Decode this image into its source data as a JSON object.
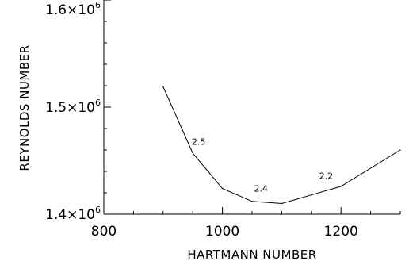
{
  "chart_data": {
    "type": "line",
    "title": "",
    "xlabel": "HARTMANN NUMBER",
    "ylabel": "REYNOLDS NUMBER",
    "xlim": [
      800,
      1300
    ],
    "ylim": [
      1400000,
      1600000
    ],
    "grid": false,
    "xticks": [
      {
        "value": 800,
        "label": "800"
      },
      {
        "value": 1000,
        "label": "1000"
      },
      {
        "value": 1200,
        "label": "1200"
      }
    ],
    "yticks": [
      {
        "value": 1400000,
        "mantissa": "1.4",
        "base": "×10",
        "exp": "6"
      },
      {
        "value": 1500000,
        "mantissa": "1.5",
        "base": "×10",
        "exp": "6"
      },
      {
        "value": 1600000,
        "mantissa": "1.6",
        "base": "×10",
        "exp": "6"
      }
    ],
    "series": [
      {
        "x": [
          900,
          950,
          1000,
          1050,
          1100,
          1150,
          1200,
          1300
        ],
        "y": [
          1519000,
          1457000,
          1424000,
          1412000,
          1410000,
          1418000,
          1426000,
          1460000
        ]
      }
    ],
    "annotations": [
      {
        "text": "2.5",
        "x": 960,
        "y": 1465000
      },
      {
        "text": "2.4",
        "x": 1065,
        "y": 1421000
      },
      {
        "text": "2.2",
        "x": 1175,
        "y": 1433000
      }
    ]
  }
}
